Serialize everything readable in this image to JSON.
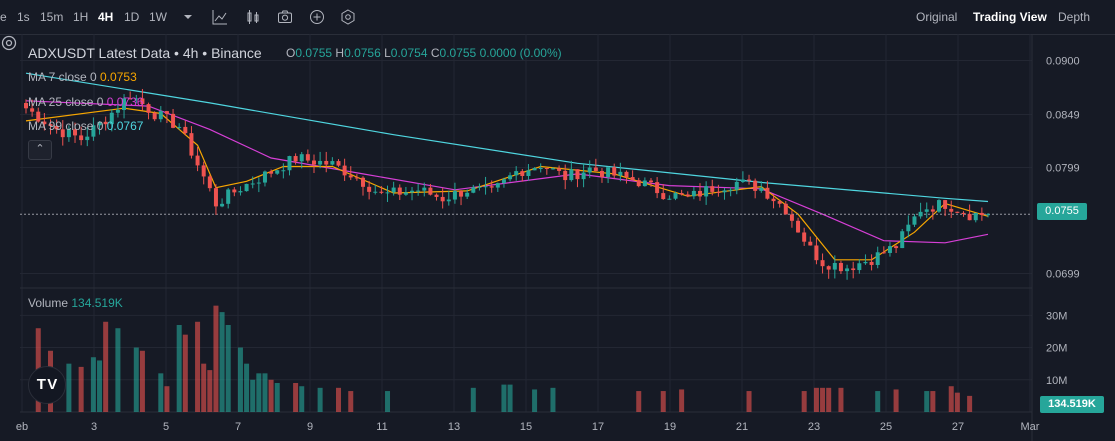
{
  "toolbar": {
    "intervals": [
      {
        "label": "e",
        "active": false
      },
      {
        "label": "1s",
        "active": false
      },
      {
        "label": "15m",
        "active": false
      },
      {
        "label": "1H",
        "active": false
      },
      {
        "label": "4H",
        "active": true
      },
      {
        "label": "1D",
        "active": false
      },
      {
        "label": "1W",
        "active": false
      }
    ],
    "icons": [
      "chevron-down-icon",
      "indicators-icon",
      "candles-icon",
      "camera-icon",
      "add-icon",
      "settings-hex-icon"
    ],
    "views": [
      {
        "label": "Original",
        "active": false
      },
      {
        "label": "Trading View",
        "active": true
      },
      {
        "label": "Depth",
        "active": false
      }
    ]
  },
  "header": {
    "symbol": "ADXUSDT Latest Data • 4h • Binance",
    "ohlc": {
      "o_label": "O",
      "o": "0.0755",
      "h_label": "H",
      "h": "0.0756",
      "l_label": "L",
      "l": "0.0754",
      "c_label": "C",
      "c": "0.0755",
      "change": "0.0000 (0.00%)"
    }
  },
  "indicators": [
    {
      "label": "MA 7 close 0",
      "value": "0.0753",
      "color": "#f7a600"
    },
    {
      "label": "MA 25 close 0",
      "value": "0.0736",
      "color": "#d63fd6"
    },
    {
      "label": "MA 99 close 0",
      "value": "0.0767",
      "color": "#4fd6e0"
    }
  ],
  "volume_legend": {
    "label": "Volume",
    "value": "134.519K"
  },
  "price_axis": {
    "labels": [
      "0.0900",
      "0.0849",
      "0.0799",
      "0.0699"
    ],
    "last_price": "0.0755",
    "volume_last": "134.519K"
  },
  "volume_axis": {
    "labels": [
      "30M",
      "20M",
      "10M"
    ]
  },
  "time_axis": {
    "labels": [
      "eb",
      "3",
      "5",
      "7",
      "9",
      "11",
      "13",
      "15",
      "17",
      "19",
      "21",
      "23",
      "25",
      "27",
      "Mar"
    ]
  },
  "colors": {
    "up": "#26a69a",
    "down": "#ef5350",
    "background": "#161a25",
    "grid": "#232733"
  },
  "chart_data": {
    "type": "candlestick",
    "interval": "4h",
    "ylim": [
      0.0675,
      0.0925
    ],
    "volume_ylim": [
      0,
      36000000
    ],
    "time_labels": [
      "eb",
      "3",
      "5",
      "7",
      "9",
      "11",
      "13",
      "15",
      "17",
      "19",
      "21",
      "23",
      "25",
      "27",
      "Mar"
    ],
    "anchors": [
      {
        "i": 0,
        "p": 0.0855
      },
      {
        "i": 5,
        "p": 0.0835
      },
      {
        "i": 9,
        "p": 0.0826
      },
      {
        "i": 13,
        "p": 0.0845
      },
      {
        "i": 17,
        "p": 0.0868
      },
      {
        "i": 21,
        "p": 0.085
      },
      {
        "i": 25,
        "p": 0.0838
      },
      {
        "i": 29,
        "p": 0.079
      },
      {
        "i": 31,
        "p": 0.0765
      },
      {
        "i": 35,
        "p": 0.078
      },
      {
        "i": 40,
        "p": 0.0795
      },
      {
        "i": 44,
        "p": 0.0808
      },
      {
        "i": 50,
        "p": 0.0802
      },
      {
        "i": 54,
        "p": 0.079
      },
      {
        "i": 58,
        "p": 0.0773
      },
      {
        "i": 64,
        "p": 0.0778
      },
      {
        "i": 68,
        "p": 0.077
      },
      {
        "i": 72,
        "p": 0.0778
      },
      {
        "i": 76,
        "p": 0.0775
      },
      {
        "i": 80,
        "p": 0.0795
      },
      {
        "i": 84,
        "p": 0.0802
      },
      {
        "i": 88,
        "p": 0.079
      },
      {
        "i": 92,
        "p": 0.0798
      },
      {
        "i": 96,
        "p": 0.0792
      },
      {
        "i": 100,
        "p": 0.0786
      },
      {
        "i": 104,
        "p": 0.0775
      },
      {
        "i": 108,
        "p": 0.077
      },
      {
        "i": 112,
        "p": 0.078
      },
      {
        "i": 116,
        "p": 0.0785
      },
      {
        "i": 120,
        "p": 0.078
      },
      {
        "i": 124,
        "p": 0.076
      },
      {
        "i": 128,
        "p": 0.0722
      },
      {
        "i": 130,
        "p": 0.071
      },
      {
        "i": 134,
        "p": 0.0705
      },
      {
        "i": 138,
        "p": 0.0713
      },
      {
        "i": 142,
        "p": 0.0725
      },
      {
        "i": 146,
        "p": 0.076
      },
      {
        "i": 150,
        "p": 0.0765
      },
      {
        "i": 154,
        "p": 0.0755
      },
      {
        "i": 157,
        "p": 0.0755
      }
    ],
    "volume_bars": [
      {
        "i": 2,
        "v": 26000000
      },
      {
        "i": 4,
        "v": 19000000
      },
      {
        "i": 7,
        "v": 15000000
      },
      {
        "i": 9,
        "v": 14000000
      },
      {
        "i": 11,
        "v": 17000000
      },
      {
        "i": 12,
        "v": 16000000
      },
      {
        "i": 13,
        "v": 28000000
      },
      {
        "i": 15,
        "v": 26000000
      },
      {
        "i": 18,
        "v": 20000000
      },
      {
        "i": 19,
        "v": 19000000
      },
      {
        "i": 22,
        "v": 12000000
      },
      {
        "i": 23,
        "v": 8000000
      },
      {
        "i": 25,
        "v": 27000000
      },
      {
        "i": 26,
        "v": 24000000
      },
      {
        "i": 28,
        "v": 28000000
      },
      {
        "i": 29,
        "v": 15000000
      },
      {
        "i": 30,
        "v": 13000000
      },
      {
        "i": 31,
        "v": 33000000
      },
      {
        "i": 32,
        "v": 31000000
      },
      {
        "i": 33,
        "v": 27000000
      },
      {
        "i": 35,
        "v": 20000000
      },
      {
        "i": 36,
        "v": 15000000
      },
      {
        "i": 37,
        "v": 10000000
      },
      {
        "i": 38,
        "v": 12000000
      },
      {
        "i": 39,
        "v": 12000000
      },
      {
        "i": 40,
        "v": 10000000
      },
      {
        "i": 41,
        "v": 9000000
      },
      {
        "i": 44,
        "v": 9000000
      },
      {
        "i": 45,
        "v": 8000000
      },
      {
        "i": 48,
        "v": 7500000
      },
      {
        "i": 51,
        "v": 7500000
      },
      {
        "i": 53,
        "v": 6500000
      },
      {
        "i": 59,
        "v": 6500000
      },
      {
        "i": 73,
        "v": 7500000
      },
      {
        "i": 78,
        "v": 8500000
      },
      {
        "i": 79,
        "v": 8500000
      },
      {
        "i": 83,
        "v": 7000000
      },
      {
        "i": 86,
        "v": 7500000
      },
      {
        "i": 100,
        "v": 6500000
      },
      {
        "i": 104,
        "v": 6500000
      },
      {
        "i": 107,
        "v": 7000000
      },
      {
        "i": 118,
        "v": 6500000
      },
      {
        "i": 127,
        "v": 6500000
      },
      {
        "i": 129,
        "v": 7500000
      },
      {
        "i": 130,
        "v": 7500000
      },
      {
        "i": 131,
        "v": 7500000
      },
      {
        "i": 133,
        "v": 7500000
      },
      {
        "i": 139,
        "v": 6500000
      },
      {
        "i": 142,
        "v": 7000000
      },
      {
        "i": 147,
        "v": 6500000
      },
      {
        "i": 148,
        "v": 6500000
      },
      {
        "i": 151,
        "v": 8000000
      },
      {
        "i": 152,
        "v": 6000000
      },
      {
        "i": 154,
        "v": 5000000
      }
    ],
    "ma7": [
      [
        0,
        0.0843
      ],
      [
        16,
        0.0855
      ],
      [
        22,
        0.085
      ],
      [
        28,
        0.082
      ],
      [
        31,
        0.078
      ],
      [
        36,
        0.0786
      ],
      [
        42,
        0.08
      ],
      [
        50,
        0.08
      ],
      [
        60,
        0.0775
      ],
      [
        72,
        0.0777
      ],
      [
        84,
        0.08
      ],
      [
        96,
        0.0793
      ],
      [
        108,
        0.0772
      ],
      [
        120,
        0.0781
      ],
      [
        126,
        0.0755
      ],
      [
        132,
        0.0712
      ],
      [
        138,
        0.0712
      ],
      [
        145,
        0.0738
      ],
      [
        150,
        0.0765
      ],
      [
        157,
        0.0753
      ]
    ],
    "ma25": [
      [
        0,
        0.0862
      ],
      [
        20,
        0.0857
      ],
      [
        30,
        0.0835
      ],
      [
        40,
        0.0808
      ],
      [
        55,
        0.0793
      ],
      [
        70,
        0.0778
      ],
      [
        90,
        0.0793
      ],
      [
        105,
        0.0782
      ],
      [
        120,
        0.0779
      ],
      [
        130,
        0.0755
      ],
      [
        140,
        0.073
      ],
      [
        150,
        0.0728
      ],
      [
        157,
        0.0736
      ]
    ],
    "ma99": [
      [
        0,
        0.0888
      ],
      [
        30,
        0.086
      ],
      [
        60,
        0.083
      ],
      [
        90,
        0.0803
      ],
      [
        120,
        0.0785
      ],
      [
        150,
        0.077
      ],
      [
        157,
        0.0767
      ]
    ]
  }
}
